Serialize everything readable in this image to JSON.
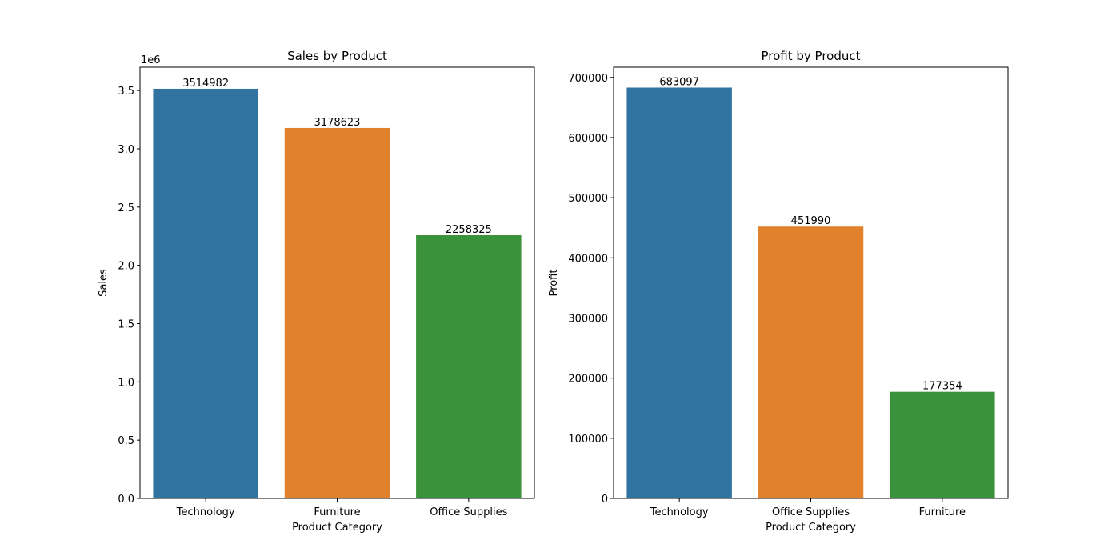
{
  "chart_data": [
    {
      "type": "bar",
      "title": "Sales by Product",
      "xlabel": "Product Category",
      "ylabel": "Sales",
      "categories": [
        "Technology",
        "Furniture",
        "Office Supplies"
      ],
      "values": [
        3514982,
        3178623,
        2258325
      ],
      "colors": [
        "#3274a1",
        "#e1812c",
        "#3a923a"
      ],
      "ylim": [
        0,
        3700000
      ],
      "yticks": [
        0,
        500000,
        1000000,
        1500000,
        2000000,
        2500000,
        3000000,
        3500000
      ],
      "ytick_labels": [
        "0.0",
        "0.5",
        "1.0",
        "1.5",
        "2.0",
        "2.5",
        "3.0",
        "3.5"
      ],
      "y_offset_text": "1e6",
      "grid": false,
      "legend": "none"
    },
    {
      "type": "bar",
      "title": "Profit by Product",
      "xlabel": "Product Category",
      "ylabel": "Profit",
      "categories": [
        "Technology",
        "Office Supplies",
        "Furniture"
      ],
      "values": [
        683097,
        451990,
        177354
      ],
      "colors": [
        "#3274a1",
        "#e1812c",
        "#3a923a"
      ],
      "ylim": [
        0,
        717000
      ],
      "yticks": [
        0,
        100000,
        200000,
        300000,
        400000,
        500000,
        600000,
        700000
      ],
      "ytick_labels": [
        "0",
        "100000",
        "200000",
        "300000",
        "400000",
        "500000",
        "600000",
        "700000"
      ],
      "grid": false,
      "legend": "none"
    }
  ]
}
